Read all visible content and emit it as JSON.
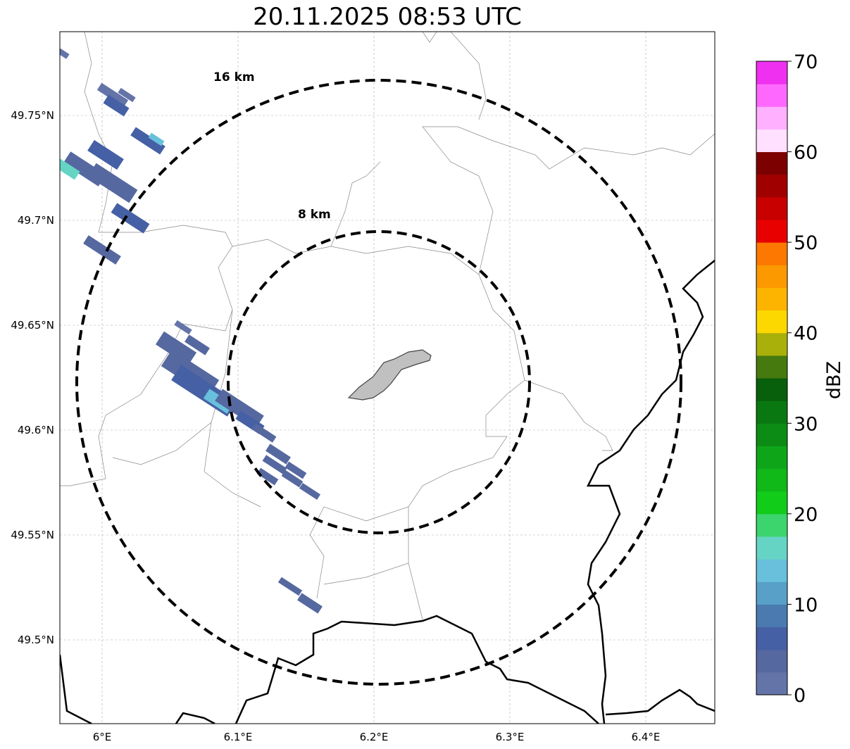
{
  "title": "20.11.2025 08:53 UTC",
  "map": {
    "x_ticks": [
      {
        "lon": 6.0,
        "label": "6°E"
      },
      {
        "lon": 6.1,
        "label": "6.1°E"
      },
      {
        "lon": 6.2,
        "label": "6.2°E"
      },
      {
        "lon": 6.3,
        "label": "6.3°E"
      },
      {
        "lon": 6.4,
        "label": "6.4°E"
      }
    ],
    "y_ticks": [
      {
        "lat": 49.75,
        "label": "49.75°N"
      },
      {
        "lat": 49.7,
        "label": "49.7°N"
      },
      {
        "lat": 49.65,
        "label": "49.65°N"
      },
      {
        "lat": 49.6,
        "label": "49.6°N"
      },
      {
        "lat": 49.55,
        "label": "49.55°N"
      },
      {
        "lat": 49.5,
        "label": "49.5°N"
      }
    ],
    "range_rings": [
      {
        "label": "16 km",
        "km": 16
      },
      {
        "label": "8 km",
        "km": 8
      }
    ],
    "center": {
      "lon": 6.2,
      "lat": 49.623
    }
  },
  "colorbar": {
    "label": "dBZ",
    "min": 0,
    "max": 70,
    "step": 2.5,
    "tick_labels": [
      "0",
      "10",
      "20",
      "30",
      "40",
      "50",
      "60",
      "70"
    ],
    "colors": [
      "#6474a8",
      "#5668a0",
      "#4560a5",
      "#4a7ab0",
      "#58a0c8",
      "#68c0dc",
      "#66d4c4",
      "#3cd46c",
      "#12cc1a",
      "#10b818",
      "#0ea618",
      "#0c8c14",
      "#0a7810",
      "#085f0c",
      "#467a0e",
      "#aab00a",
      "#fcd800",
      "#fcb400",
      "#fc9800",
      "#fc7800",
      "#e80000",
      "#c80000",
      "#a00000",
      "#7c0000",
      "#ffe0ff",
      "#ffb0ff",
      "#ff68ff",
      "#f030f0"
    ]
  }
}
